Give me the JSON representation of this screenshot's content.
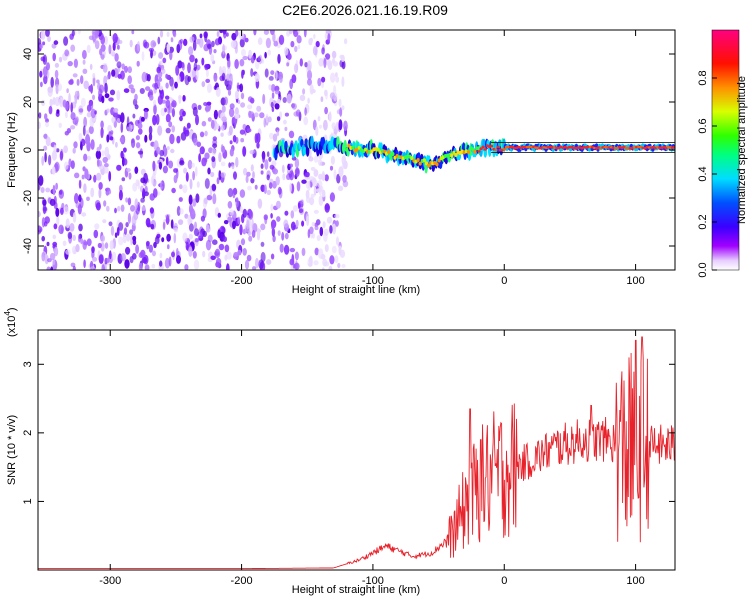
{
  "title": "C2E6.2026.021.16.19.R09",
  "chart_data": [
    {
      "type": "heatmap",
      "xlabel": "Height of straight line (km)",
      "ylabel": "Frequency (Hz)",
      "xlim": [
        -355,
        130
      ],
      "ylim": [
        -50,
        50
      ],
      "xticks": [
        "-300",
        "-200",
        "-100",
        "0",
        "100"
      ],
      "yticks": [
        "-40",
        "-20",
        "0",
        "20",
        "40"
      ],
      "colorbar": {
        "label": "Normalized spectral amplitude",
        "range": [
          0,
          1
        ],
        "ticks": [
          "0.0",
          "0.2",
          "0.4",
          "0.6",
          "0.8"
        ]
      },
      "noise_region_x": [
        -355,
        -135
      ],
      "ridge": [
        {
          "x": -175,
          "y": 0
        },
        {
          "x": -140,
          "y": 2
        },
        {
          "x": -120,
          "y": 1
        },
        {
          "x": -100,
          "y": 0
        },
        {
          "x": -85,
          "y": -2
        },
        {
          "x": -70,
          "y": -4
        },
        {
          "x": -55,
          "y": -6
        },
        {
          "x": -40,
          "y": -2
        },
        {
          "x": -25,
          "y": 0
        },
        {
          "x": -10,
          "y": 1
        },
        {
          "x": 0,
          "y": 1
        },
        {
          "x": 40,
          "y": 1
        },
        {
          "x": 100,
          "y": 1
        },
        {
          "x": 130,
          "y": 1
        }
      ],
      "reference_line_y": 0
    },
    {
      "type": "line",
      "xlabel": "Height of straight line (km)",
      "ylabel": "SNR (10 * v/v)",
      "yscale_label": "(x10",
      "yscale_exp": "4",
      "yscale_close": ")",
      "xlim": [
        -355,
        130
      ],
      "ylim": [
        0,
        3.5
      ],
      "xticks": [
        "-300",
        "-200",
        "-100",
        "0",
        "100"
      ],
      "yticks": [
        "1",
        "2",
        "3"
      ],
      "color": "#e8222a",
      "envelope": [
        {
          "x": -355,
          "y": 0.02
        },
        {
          "x": -200,
          "y": 0.02
        },
        {
          "x": -130,
          "y": 0.03
        },
        {
          "x": -110,
          "y": 0.15
        },
        {
          "x": -90,
          "y": 0.35
        },
        {
          "x": -70,
          "y": 0.2
        },
        {
          "x": -55,
          "y": 0.25
        },
        {
          "x": -40,
          "y": 0.5
        },
        {
          "x": -28,
          "y": 1.0
        },
        {
          "x": -15,
          "y": 1.3
        },
        {
          "x": 0,
          "y": 1.45
        },
        {
          "x": 20,
          "y": 1.6
        },
        {
          "x": 40,
          "y": 1.8
        },
        {
          "x": 60,
          "y": 1.9
        },
        {
          "x": 80,
          "y": 1.9
        },
        {
          "x": 90,
          "y": 1.75
        },
        {
          "x": 105,
          "y": 1.8
        },
        {
          "x": 130,
          "y": 1.82
        }
      ],
      "spikes": [
        {
          "x": -26,
          "y": 2.35
        },
        {
          "x": -18,
          "y": 1.9
        },
        {
          "x": 66,
          "y": 2.4
        },
        {
          "x": 95,
          "y": 3.1
        },
        {
          "x": 100,
          "y": 3.35
        },
        {
          "x": 105,
          "y": 3.4
        }
      ]
    }
  ]
}
